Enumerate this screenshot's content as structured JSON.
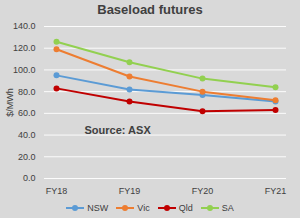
{
  "chart_data": {
    "type": "line",
    "title": "Baseload futures",
    "categories": [
      "FY18",
      "FY19",
      "FY20",
      "FY21"
    ],
    "series": [
      {
        "name": "NSW",
        "color": "#5b9bd5",
        "values": [
          95,
          82,
          77,
          71
        ]
      },
      {
        "name": "Vic",
        "color": "#ed7d31",
        "values": [
          119,
          94,
          80,
          72
        ]
      },
      {
        "name": "Qld",
        "color": "#c00000",
        "values": [
          83,
          71,
          62,
          63
        ]
      },
      {
        "name": "SA",
        "color": "#92d050",
        "values": [
          126,
          107,
          92,
          84
        ]
      }
    ],
    "ylabel": "$/MWh",
    "ylim": [
      0,
      140
    ],
    "yticks": [
      {
        "value": 0,
        "label": "0.0"
      },
      {
        "value": 20,
        "label": "20.0"
      },
      {
        "value": 40,
        "label": "40.0"
      },
      {
        "value": 60,
        "label": "60.0"
      },
      {
        "value": 80,
        "label": "80.0"
      },
      {
        "value": 100,
        "label": "100.0"
      },
      {
        "value": 120,
        "label": "120.0"
      },
      {
        "value": 140,
        "label": "140.0"
      }
    ],
    "annotation": "Source: ASX",
    "grid": true,
    "legend": "bottom",
    "marker": "circle"
  }
}
